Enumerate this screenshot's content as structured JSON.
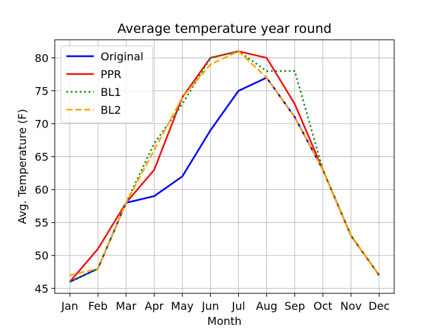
{
  "chart_data": {
    "type": "line",
    "title": "Average temperature year round",
    "xlabel": "Month",
    "ylabel": "Avg. Temperature (F)",
    "categories": [
      "Jan",
      "Feb",
      "Mar",
      "Apr",
      "May",
      "Jun",
      "Jul",
      "Aug",
      "Sep",
      "Oct",
      "Nov",
      "Dec"
    ],
    "ylim": [
      44.25,
      82.75
    ],
    "yticks": [
      45,
      50,
      55,
      60,
      65,
      70,
      75,
      80
    ],
    "grid": true,
    "legend_position": "top-left",
    "series": [
      {
        "name": "Original",
        "color": "#0000ee",
        "style": "solid",
        "values": [
          46,
          48,
          58,
          59,
          62,
          69,
          75,
          77,
          71,
          63,
          53,
          47
        ]
      },
      {
        "name": "PPR",
        "color": "#ee1111",
        "style": "solid",
        "values": [
          46,
          51,
          58,
          63,
          74,
          80,
          81,
          80,
          73,
          63,
          53,
          47
        ]
      },
      {
        "name": "BL1",
        "color": "#118811",
        "style": "dotted",
        "values": [
          46,
          48,
          58,
          67,
          73,
          80,
          81,
          78,
          78,
          63,
          53,
          47
        ]
      },
      {
        "name": "BL2",
        "color": "#ffa500",
        "style": "dashed",
        "values": [
          47,
          48,
          58,
          66,
          74,
          79,
          81,
          77,
          71,
          63,
          53,
          47
        ]
      }
    ]
  }
}
